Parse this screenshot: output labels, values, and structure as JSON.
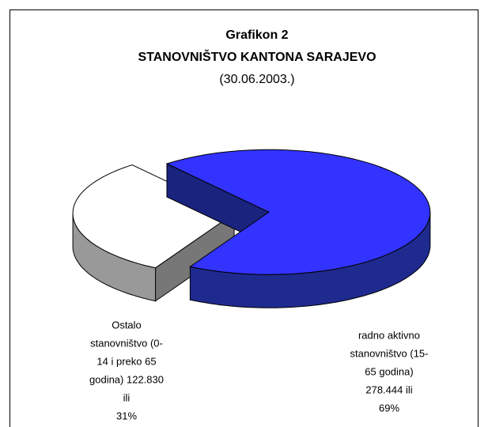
{
  "chart_data": {
    "type": "pie",
    "title": "Grafikon 2",
    "subtitle": "STANOVNIŠTVO KANTONA SARAJEVO",
    "date": "(30.06.2003.)",
    "label_lines": [
      [
        "Ostalo",
        "stanovništvo (0-",
        "14 i preko 65",
        "godina) 122.830",
        "ili"
      ],
      [
        "radno aktivno",
        "stanovništvo (15-",
        "65 godina)",
        "278.444 ili"
      ]
    ],
    "values": [
      31,
      69
    ],
    "value_labels": [
      "31%",
      "69%"
    ],
    "colors": [
      "#ffffff",
      "#3333ff"
    ],
    "side_colors": [
      "#999999",
      "#1f2a8f"
    ],
    "wall_colors": [
      "#777777",
      "#1a237e"
    ],
    "three_d": true,
    "exploded": true
  }
}
